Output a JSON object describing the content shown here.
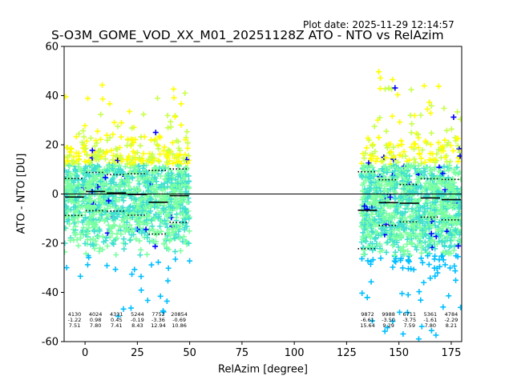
{
  "header": {
    "plot_date": "Plot date: 2025-11-29 12:14:57",
    "title": "S-O3M_GOME_VOD_XX_M01_20251128Z ATO - NTO vs RelAzim"
  },
  "chart_data": {
    "type": "scatter",
    "title": "S-O3M_GOME_VOD_XX_M01_20251128Z ATO - NTO vs RelAzim",
    "xlabel": "RelAzim [degree]",
    "ylabel": "ATO - NTO [DU]",
    "xlim": [
      -10,
      180
    ],
    "ylim": [
      -60,
      60
    ],
    "xticks": [
      0,
      25,
      50,
      75,
      100,
      125,
      150,
      175
    ],
    "yticks": [
      -60,
      -40,
      -20,
      0,
      20,
      40,
      60
    ],
    "grid": false,
    "zero_line": 0,
    "marker": "+",
    "colormap": [
      "#0000ff",
      "#00bfff",
      "#40e0d0",
      "#7cffa0",
      "#c8ff4a",
      "#ffff00"
    ],
    "scatter_clusters": [
      {
        "x": [
          -10,
          50
        ],
        "y_core": [
          -20,
          20
        ],
        "y_extent": [
          -50,
          45
        ]
      },
      {
        "x": [
          132,
          180
        ],
        "y_core": [
          -25,
          18
        ],
        "y_extent": [
          -60,
          50
        ]
      }
    ],
    "bins": [
      {
        "x_range": [
          -10,
          0
        ],
        "count": "4130",
        "mean": "-1.22",
        "std": "7.51",
        "mean_val": -1.22,
        "std_val": 7.51
      },
      {
        "x_range": [
          0,
          10
        ],
        "count": "4024",
        "mean": "0.98",
        "std": "7.80",
        "mean_val": 0.98,
        "std_val": 7.8
      },
      {
        "x_range": [
          10,
          20
        ],
        "count": "4331",
        "mean": "0.45",
        "std": "7.41",
        "mean_val": 0.45,
        "std_val": 7.41
      },
      {
        "x_range": [
          20,
          30
        ],
        "count": "5244",
        "mean": "-0.19",
        "std": "8.43",
        "mean_val": -0.19,
        "std_val": 8.43
      },
      {
        "x_range": [
          30,
          40
        ],
        "count": "7752",
        "mean": "-3.36",
        "std": "12.94",
        "mean_val": -3.36,
        "std_val": 12.94
      },
      {
        "x_range": [
          40,
          50
        ],
        "count": "20854",
        "mean": "-0.69",
        "std": "10.86",
        "mean_val": -0.69,
        "std_val": 10.86
      },
      {
        "x_range": [
          130,
          140
        ],
        "count": "9872",
        "mean": "-6.61",
        "std": "15.64",
        "mean_val": -6.61,
        "std_val": 15.64
      },
      {
        "x_range": [
          140,
          150
        ],
        "count": "9988",
        "mean": "-3.50",
        "std": "9.29",
        "mean_val": -3.5,
        "std_val": 9.29
      },
      {
        "x_range": [
          150,
          160
        ],
        "count": "6711",
        "mean": "-3.75",
        "std": "7.59",
        "mean_val": -3.75,
        "std_val": 7.59
      },
      {
        "x_range": [
          160,
          170
        ],
        "count": "5361",
        "mean": "-1.61",
        "std": "7.80",
        "mean_val": -1.61,
        "std_val": 7.8
      },
      {
        "x_range": [
          170,
          180
        ],
        "count": "4784",
        "mean": "-2.29",
        "std": "8.21",
        "mean_val": -2.29,
        "std_val": 8.21
      }
    ]
  }
}
